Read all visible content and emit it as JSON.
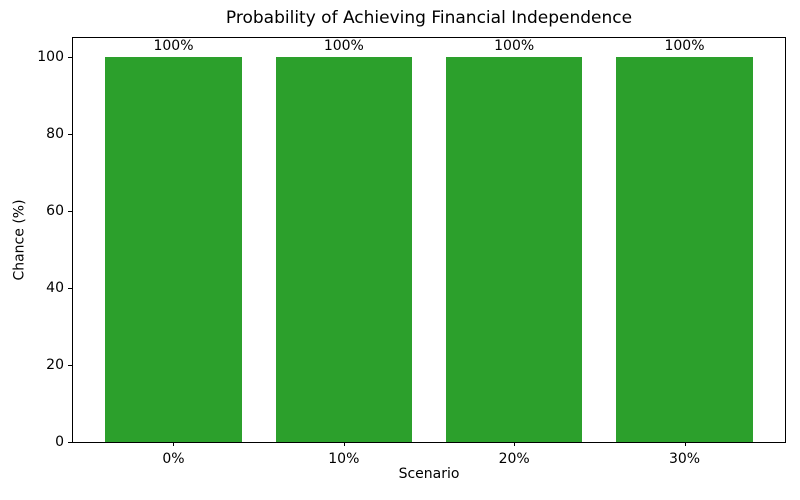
{
  "chart_data": {
    "type": "bar",
    "title": "Probability of Achieving Financial Independence",
    "xlabel": "Scenario",
    "ylabel": "Chance (%)",
    "categories": [
      "0%",
      "10%",
      "20%",
      "30%"
    ],
    "values": [
      100,
      100,
      100,
      100
    ],
    "bar_labels": [
      "100%",
      "100%",
      "100%",
      "100%"
    ],
    "yticks": [
      0,
      20,
      40,
      60,
      80,
      100
    ],
    "ylim": [
      0,
      105
    ],
    "bar_color": "#2ca02c",
    "bar_width_fraction": 0.8,
    "grid": false,
    "legend": "none",
    "spine_color": "#000000",
    "background_color": "#ffffff"
  }
}
